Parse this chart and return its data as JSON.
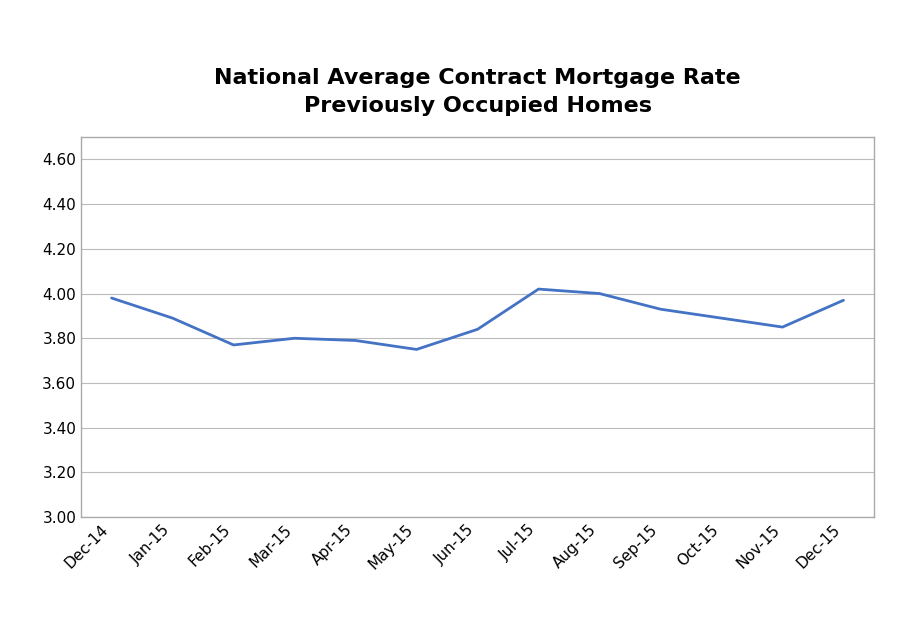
{
  "title_line1": "National Average Contract Mortgage Rate",
  "title_line2": "Previously Occupied Homes",
  "x_labels": [
    "Dec-14",
    "Jan-15",
    "Feb-15",
    "Mar-15",
    "Apr-15",
    "May-15",
    "Jun-15",
    "Jul-15",
    "Aug-15",
    "Sep-15",
    "Oct-15",
    "Nov-15",
    "Dec-15"
  ],
  "y_values": [
    3.98,
    3.89,
    3.77,
    3.8,
    3.79,
    3.75,
    3.84,
    4.02,
    4.0,
    3.93,
    3.89,
    3.85,
    3.97
  ],
  "ylim_min": 3.0,
  "ylim_max": 4.7,
  "ytick_start": 3.0,
  "ytick_end": 4.6,
  "ytick_step": 0.2,
  "line_color": "#4472C4",
  "line_width": 2.0,
  "bg_color": "#FFFFFF",
  "plot_bg_color": "#FFFFFF",
  "grid_color": "#BBBBBB",
  "title_fontsize": 16,
  "tick_fontsize": 11,
  "border_color": "#AAAAAA"
}
